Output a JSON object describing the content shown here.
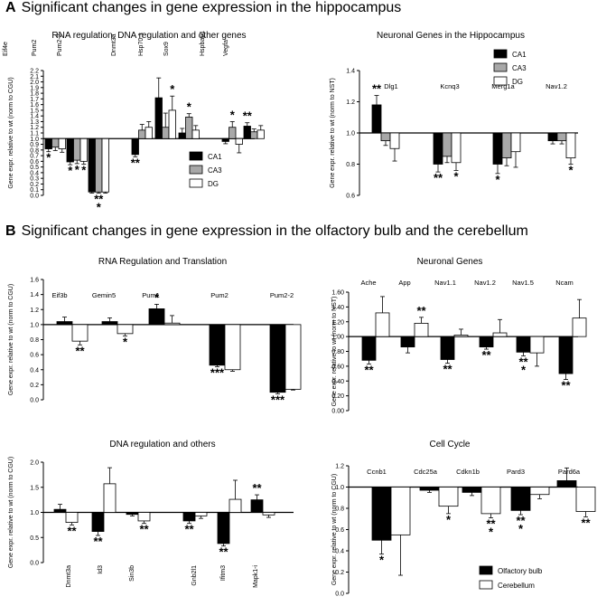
{
  "section_a": {
    "letter": "A",
    "title": "Significant changes in gene expression in the hippocampus"
  },
  "section_b": {
    "letter": "B",
    "title": "Significant changes in gene expression in the olfactory bulb and the cerebellum"
  },
  "colors": {
    "ca1": "#000000",
    "ca3": "#a8a8a8",
    "dg": "#ffffff",
    "olfactory": "#000000",
    "cerebellum": "#ffffff"
  },
  "chart_data": [
    {
      "id": "a1",
      "type": "bar",
      "title": "RNA regulation, DNA regulation and other genes",
      "ylabel": "Gene expr. relative to wt (norm to CGU)",
      "ylim": [
        0,
        2.2
      ],
      "baseline": 1.0,
      "yticks": [
        0.0,
        0.1,
        0.2,
        0.3,
        0.4,
        0.5,
        0.6,
        0.7,
        0.8,
        0.9,
        1.0,
        1.1,
        1.2,
        1.3,
        1.4,
        1.5,
        1.6,
        1.7,
        1.8,
        1.9,
        2.0,
        2.1,
        2.2
      ],
      "categories": [
        "Eif4e",
        "Pum2",
        "Pum2-2",
        "Dnmt3a",
        "Hsp70.1",
        "Sox9",
        "Hspbap1",
        "Vegfa"
      ],
      "series": [
        {
          "name": "CA1",
          "color": "#000000",
          "values": [
            0.82,
            0.59,
            0.06,
            0.72,
            1.72,
            1.1,
            0.95,
            1.22
          ],
          "errors": [
            0.05,
            0.05,
            0.02,
            0.04,
            0.35,
            0.08,
            0.04,
            0.06
          ]
        },
        {
          "name": "CA3",
          "color": "#a8a8a8",
          "values": [
            0.85,
            0.62,
            0.06,
            1.15,
            1.2,
            1.38,
            1.2,
            1.12
          ],
          "errors": [
            0.06,
            0.06,
            0.02,
            0.1,
            0.25,
            0.06,
            0.1,
            0.05
          ]
        },
        {
          "name": "DG",
          "color": "#ffffff",
          "values": [
            0.82,
            0.6,
            0.06,
            1.2,
            1.5,
            1.15,
            0.9,
            1.15
          ],
          "errors": [
            0.06,
            0.05,
            0.02,
            0.1,
            0.25,
            0.08,
            0.15,
            0.08
          ]
        }
      ],
      "annotations": [
        {
          "cat": 0,
          "series": 0,
          "text": "*",
          "pos": "below"
        },
        {
          "cat": 1,
          "series": 0,
          "text": "*",
          "pos": "below"
        },
        {
          "cat": 1,
          "series": 1,
          "text": "*",
          "pos": "below"
        },
        {
          "cat": 1,
          "series": 2,
          "text": "*",
          "pos": "below"
        },
        {
          "cat": 2,
          "series": 1,
          "text": "**",
          "pos": "below"
        },
        {
          "cat": 2,
          "series": 1,
          "text": "*",
          "pos": "below2"
        },
        {
          "cat": 3,
          "series": 0,
          "text": "**",
          "pos": "below"
        },
        {
          "cat": 4,
          "series": 2,
          "text": "*",
          "pos": "above"
        },
        {
          "cat": 5,
          "series": 1,
          "text": "*",
          "pos": "above"
        },
        {
          "cat": 6,
          "series": 1,
          "text": "*",
          "pos": "above"
        },
        {
          "cat": 7,
          "series": 0,
          "text": "**",
          "pos": "above"
        }
      ],
      "legend": [
        "CA1",
        "CA3",
        "DG"
      ],
      "legend_position": "bottom-right"
    },
    {
      "id": "a2",
      "type": "bar",
      "title": "Neuronal Genes in the Hippocampus",
      "ylabel": "Gene expr. relative to wt (norm to NST)",
      "ylim": [
        0.6,
        1.4
      ],
      "baseline": 1.0,
      "yticks": [
        0.6,
        0.8,
        1.0,
        1.2,
        1.4
      ],
      "categories": [
        "Dlg1",
        "Kcnq3",
        "Merg1a",
        "Nav1.2"
      ],
      "series": [
        {
          "name": "CA1",
          "color": "#000000",
          "values": [
            1.18,
            0.8,
            0.8,
            0.95
          ],
          "errors": [
            0.06,
            0.05,
            0.06,
            0.02
          ]
        },
        {
          "name": "CA3",
          "color": "#a8a8a8",
          "values": [
            0.95,
            0.85,
            0.84,
            0.95
          ],
          "errors": [
            0.03,
            0.04,
            0.05,
            0.02
          ]
        },
        {
          "name": "DG",
          "color": "#ffffff",
          "values": [
            0.9,
            0.81,
            0.88,
            0.84
          ],
          "errors": [
            0.08,
            0.05,
            0.1,
            0.04
          ]
        }
      ],
      "annotations": [
        {
          "cat": 0,
          "series": 0,
          "text": "**",
          "pos": "above"
        },
        {
          "cat": 1,
          "series": 0,
          "text": "**",
          "pos": "below"
        },
        {
          "cat": 1,
          "series": 2,
          "text": "*",
          "pos": "below"
        },
        {
          "cat": 2,
          "series": 0,
          "text": "*",
          "pos": "below"
        },
        {
          "cat": 3,
          "series": 2,
          "text": "*",
          "pos": "below"
        }
      ],
      "legend": [
        "CA1",
        "CA3",
        "DG"
      ],
      "legend_position": "top-right"
    },
    {
      "id": "b1",
      "type": "bar",
      "title": "RNA Regulation and Translation",
      "ylabel": "Gene expr. relative to wt (norm to CGU)",
      "ylim": [
        0,
        1.6
      ],
      "baseline": 1.0,
      "yticks": [
        0.0,
        0.2,
        0.4,
        0.6,
        0.8,
        1.0,
        1.2,
        1.4,
        1.6
      ],
      "categories": [
        "Eif3b",
        "Gemin5",
        "Pum1",
        "Pum2",
        "Pum2-2"
      ],
      "series": [
        {
          "name": "Olfactory bulb",
          "color": "#000000",
          "values": [
            1.04,
            1.04,
            1.21,
            0.46,
            0.1
          ],
          "errors": [
            0.06,
            0.05,
            0.06,
            0.02,
            0.02
          ]
        },
        {
          "name": "Cerebellum",
          "color": "#ffffff",
          "values": [
            0.78,
            0.88,
            1.02,
            0.4,
            0.14
          ],
          "errors": [
            0.05,
            0.03,
            0.1,
            0.02,
            0.01
          ]
        }
      ],
      "annotations": [
        {
          "cat": 0,
          "series": 1,
          "text": "**",
          "pos": "below"
        },
        {
          "cat": 1,
          "series": 1,
          "text": "*",
          "pos": "below"
        },
        {
          "cat": 2,
          "series": 0,
          "text": "*",
          "pos": "above"
        },
        {
          "cat": 3,
          "series": 0,
          "text": "***",
          "pos": "below"
        },
        {
          "cat": 4,
          "series": 0,
          "text": "***",
          "pos": "below"
        }
      ]
    },
    {
      "id": "b2",
      "type": "bar",
      "title": "Neuronal Genes",
      "ylabel": "Gene expr. relative to wt (norm to NST)",
      "ylim": [
        0,
        1.6
      ],
      "baseline": 1.0,
      "yticks": [
        0.0,
        0.2,
        0.4,
        0.6,
        0.8,
        1.0,
        1.2,
        1.4,
        1.6
      ],
      "categories": [
        "Ache",
        "App",
        "Nav1.1",
        "Nav1.2",
        "Nav1.5",
        "Ncam"
      ],
      "series": [
        {
          "name": "Olfactory bulb",
          "color": "#000000",
          "values": [
            0.68,
            0.86,
            0.69,
            0.86,
            0.79,
            0.5
          ],
          "errors": [
            0.05,
            0.08,
            0.05,
            0.03,
            0.05,
            0.08
          ]
        },
        {
          "name": "Cerebellum",
          "color": "#ffffff",
          "values": [
            1.32,
            1.18,
            1.02,
            1.05,
            0.78,
            1.25
          ],
          "errors": [
            0.22,
            0.08,
            0.08,
            0.18,
            0.18,
            0.25
          ]
        }
      ],
      "annotations": [
        {
          "cat": 0,
          "series": 0,
          "text": "**",
          "pos": "below"
        },
        {
          "cat": 1,
          "series": 1,
          "text": "**",
          "pos": "above"
        },
        {
          "cat": 2,
          "series": 0,
          "text": "**",
          "pos": "below"
        },
        {
          "cat": 3,
          "series": 0,
          "text": "**",
          "pos": "below"
        },
        {
          "cat": 4,
          "series": 0,
          "text": "**",
          "pos": "below"
        },
        {
          "cat": 4,
          "series": 0,
          "text": "*",
          "pos": "below2"
        },
        {
          "cat": 5,
          "series": 0,
          "text": "**",
          "pos": "below"
        }
      ]
    },
    {
      "id": "b3",
      "type": "bar",
      "title": "DNA regulation and others",
      "ylabel": "Gene expr. relative to wt (norm to CGU)",
      "ylim": [
        0,
        2.0
      ],
      "baseline": 1.0,
      "yticks": [
        0.0,
        0.5,
        1.0,
        1.5,
        2.0
      ],
      "categories": [
        "Dnmt3a",
        "Id3",
        "Sin3b",
        "Gnb2l1",
        "Ifitm3",
        "Mapk1-i"
      ],
      "series": [
        {
          "name": "Olfactory bulb",
          "color": "#000000",
          "values": [
            1.06,
            0.62,
            0.96,
            0.83,
            0.38,
            1.25
          ],
          "errors": [
            0.1,
            0.08,
            0.03,
            0.05,
            0.05,
            0.1
          ]
        },
        {
          "name": "Cerebellum",
          "color": "#ffffff",
          "values": [
            0.8,
            1.57,
            0.83,
            0.93,
            1.26,
            0.95
          ],
          "errors": [
            0.05,
            0.32,
            0.05,
            0.05,
            0.38,
            0.05
          ]
        }
      ],
      "annotations": [
        {
          "cat": 0,
          "series": 1,
          "text": "**",
          "pos": "below"
        },
        {
          "cat": 1,
          "series": 0,
          "text": "**",
          "pos": "below"
        },
        {
          "cat": 2,
          "series": 1,
          "text": "**",
          "pos": "below"
        },
        {
          "cat": 3,
          "series": 0,
          "text": "**",
          "pos": "below"
        },
        {
          "cat": 4,
          "series": 0,
          "text": "**",
          "pos": "below"
        },
        {
          "cat": 5,
          "series": 0,
          "text": "**",
          "pos": "above"
        }
      ]
    },
    {
      "id": "b4",
      "type": "bar",
      "title": "Cell Cycle",
      "ylabel": "Gene expr. relative to wt (norm to CGU)",
      "ylim": [
        0,
        1.2
      ],
      "baseline": 1.0,
      "yticks": [
        0.0,
        0.2,
        0.4,
        0.6,
        0.8,
        1.0,
        1.2
      ],
      "categories": [
        "Ccnb1",
        "Cdc25a",
        "Cdkn1b",
        "Pard3",
        "Pard6a"
      ],
      "series": [
        {
          "name": "Olfactory bulb",
          "color": "#000000",
          "values": [
            0.5,
            0.97,
            0.95,
            0.78,
            1.06
          ],
          "errors": [
            0.13,
            0.02,
            0.03,
            0.04,
            0.12
          ]
        },
        {
          "name": "Cerebellum",
          "color": "#ffffff",
          "values": [
            0.55,
            0.82,
            0.75,
            0.93,
            0.77
          ],
          "errors": [
            0.38,
            0.07,
            0.04,
            0.04,
            0.05
          ]
        }
      ],
      "annotations": [
        {
          "cat": 0,
          "series": 0,
          "text": "*",
          "pos": "below"
        },
        {
          "cat": 1,
          "series": 1,
          "text": "*",
          "pos": "below"
        },
        {
          "cat": 2,
          "series": 1,
          "text": "**",
          "pos": "below"
        },
        {
          "cat": 2,
          "series": 1,
          "text": "*",
          "pos": "below2"
        },
        {
          "cat": 3,
          "series": 0,
          "text": "**",
          "pos": "below"
        },
        {
          "cat": 3,
          "series": 0,
          "text": "*",
          "pos": "below2"
        },
        {
          "cat": 4,
          "series": 1,
          "text": "**",
          "pos": "below"
        }
      ],
      "legend": [
        "Olfactory bulb",
        "Cerebellum"
      ],
      "legend_position": "bottom-right"
    }
  ]
}
